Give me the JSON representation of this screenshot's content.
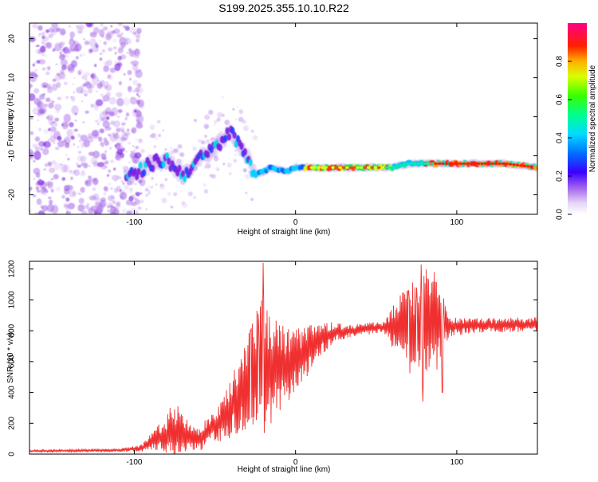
{
  "title": "S199.2025.355.10.10.R22",
  "colors": {
    "snr_line": "#f03030",
    "ridge_purple": "#7a1fe0",
    "noise_purple": "#b07ae8"
  },
  "chart_data": [
    {
      "type": "heatmap",
      "title": "S199.2025.355.10.10.R22",
      "xlabel": "Height of straight line (km)",
      "ylabel": "Frequency (Hz)",
      "xlim": [
        -165,
        150
      ],
      "ylim": [
        -25,
        24
      ],
      "xticks": [
        -100,
        0,
        100
      ],
      "xtick_labels": [
        "-100",
        "0",
        "100"
      ],
      "yticks": [
        20,
        10,
        0,
        -10,
        -20
      ],
      "ytick_labels": [
        "20",
        "10",
        "0",
        "-10",
        "-20"
      ],
      "colorbar": {
        "label": "Normalized spectral amplitude",
        "range": [
          0,
          1
        ],
        "ticks": [
          0.0,
          0.2,
          0.4,
          0.6,
          0.8
        ],
        "tick_labels": [
          "0.0",
          "0.2",
          "0.4",
          "0.6",
          "0.8"
        ]
      },
      "ridge": {
        "description_points": [
          [
            -100,
            -15
          ],
          [
            -90,
            -12
          ],
          [
            -80,
            -11
          ],
          [
            -70,
            -15
          ],
          [
            -60,
            -11
          ],
          [
            -50,
            -8
          ],
          [
            -40,
            -4
          ],
          [
            -30,
            -10
          ],
          [
            -25,
            -15
          ],
          [
            -15,
            -13
          ],
          [
            -5,
            -14
          ],
          [
            0,
            -13
          ],
          [
            20,
            -13
          ],
          [
            60,
            -13
          ],
          [
            70,
            -12
          ],
          [
            100,
            -12
          ],
          [
            130,
            -12
          ],
          [
            150,
            -13
          ]
        ]
      }
    },
    {
      "type": "line",
      "xlabel": "Height of straight line (km)",
      "ylabel": "SNR (10 * v/v)",
      "xlim": [
        -165,
        150
      ],
      "ylim": [
        0,
        1250
      ],
      "xticks": [
        -100,
        0,
        100
      ],
      "xtick_labels": [
        "-100",
        "0",
        "100"
      ],
      "yticks": [
        0,
        200,
        400,
        600,
        800,
        1000,
        1200
      ],
      "ytick_labels": [
        "0",
        "200",
        "400",
        "600",
        "800",
        "1000",
        "1200"
      ],
      "series": [
        {
          "name": "SNR",
          "baseline": [
            [
              -165,
              20
            ],
            [
              -110,
              25
            ],
            [
              -95,
              40
            ],
            [
              -85,
              110
            ],
            [
              -70,
              140
            ],
            [
              -60,
              100
            ],
            [
              -45,
              220
            ],
            [
              -35,
              380
            ],
            [
              -25,
              500
            ],
            [
              -15,
              560
            ],
            [
              -5,
              570
            ],
            [
              5,
              650
            ],
            [
              15,
              740
            ],
            [
              25,
              790
            ],
            [
              35,
              800
            ],
            [
              50,
              820
            ],
            [
              60,
              820
            ],
            [
              70,
              810
            ],
            [
              80,
              820
            ],
            [
              90,
              825
            ],
            [
              100,
              830
            ],
            [
              120,
              835
            ],
            [
              150,
              840
            ]
          ],
          "noise": [
            [
              -165,
              6
            ],
            [
              -110,
              8
            ],
            [
              -95,
              20
            ],
            [
              -85,
              70
            ],
            [
              -75,
              150
            ],
            [
              -65,
              70
            ],
            [
              -50,
              80
            ],
            [
              -40,
              160
            ],
            [
              -30,
              260
            ],
            [
              -20,
              420
            ],
            [
              -15,
              300
            ],
            [
              -5,
              200
            ],
            [
              5,
              150
            ],
            [
              15,
              90
            ],
            [
              30,
              40
            ],
            [
              55,
              30
            ],
            [
              62,
              150
            ],
            [
              70,
              260
            ],
            [
              80,
              330
            ],
            [
              88,
              240
            ],
            [
              95,
              60
            ],
            [
              110,
              40
            ],
            [
              150,
              40
            ]
          ],
          "peaks": [
            [
              -20,
              1240
            ],
            [
              -23,
              850
            ],
            [
              -28,
              800
            ],
            [
              -78,
              300
            ],
            [
              -73,
              310
            ],
            [
              70,
              1060
            ],
            [
              75,
              1080
            ],
            [
              78,
              1230
            ],
            [
              79,
              340
            ],
            [
              86,
              1180
            ],
            [
              92,
              1010
            ],
            [
              91,
              400
            ]
          ]
        }
      ]
    }
  ]
}
